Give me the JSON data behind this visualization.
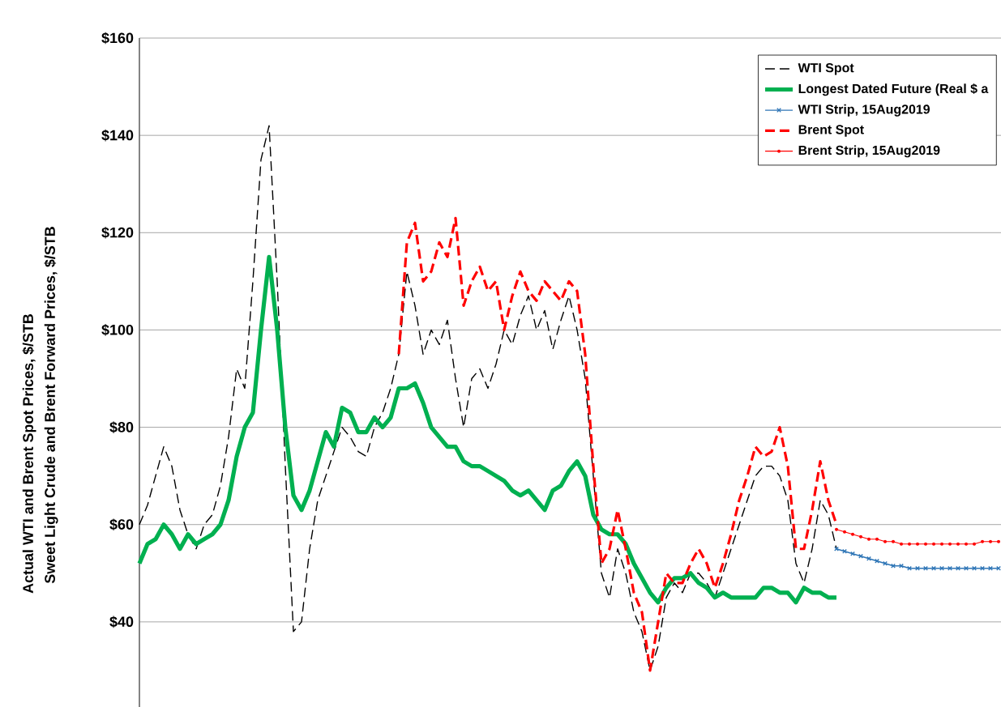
{
  "chart_data": {
    "type": "line",
    "ylabel": "Actual WTI and Brent Spot Prices, $/STB",
    "annotations": [
      "Sweet Light Crude and Brent Forward Prices, $/STB"
    ],
    "categories": [
      null,
      null,
      null,
      null,
      null,
      null,
      null,
      null,
      null,
      null,
      null,
      null,
      null,
      null,
      null,
      null,
      null,
      null,
      null,
      null,
      null,
      null,
      null,
      null,
      null,
      null,
      null,
      null,
      null,
      null,
      null,
      null,
      null,
      null,
      null,
      null,
      null,
      null,
      null,
      null,
      null,
      null,
      null,
      null,
      null,
      null,
      null,
      null,
      null,
      null,
      null,
      null,
      null,
      null,
      null,
      null,
      null,
      null,
      null,
      null,
      null,
      null,
      null,
      null,
      null,
      null,
      null,
      null,
      null,
      null,
      null,
      null,
      null,
      null,
      null,
      null,
      null,
      null,
      null,
      null,
      null,
      null,
      null,
      null,
      null,
      null,
      null,
      null,
      null,
      null,
      null,
      null,
      null,
      null,
      null,
      null,
      null,
      null,
      null,
      null,
      null,
      null,
      null,
      null,
      null,
      null,
      null
    ],
    "ylim": [
      22.5,
      160
    ],
    "yticks": [
      {
        "value": 40,
        "label": "$40"
      },
      {
        "value": 60,
        "label": "$60"
      },
      {
        "value": 80,
        "label": "$80"
      },
      {
        "value": 100,
        "label": "$100"
      },
      {
        "value": 120,
        "label": "$120"
      },
      {
        "value": 140,
        "label": "$140"
      },
      {
        "value": 160,
        "label": "$160"
      }
    ],
    "grid": "y",
    "legend": "top right",
    "series": [
      {
        "name": "WTI Spot",
        "color": "#000000",
        "line_style": "dashed",
        "marker": "none",
        "values": [
          60,
          64,
          70,
          76,
          72,
          63,
          58,
          55,
          60,
          62,
          68,
          78,
          92,
          88,
          110,
          135,
          142,
          110,
          72,
          38,
          40,
          55,
          65,
          70,
          75,
          80,
          78,
          75,
          74,
          80,
          83,
          88,
          95,
          112,
          105,
          95,
          100,
          97,
          102,
          90,
          80,
          90,
          92,
          88,
          93,
          100,
          97,
          103,
          107,
          100,
          104,
          96,
          102,
          107,
          100,
          90,
          70,
          50,
          45,
          55,
          50,
          42,
          38,
          30,
          35,
          45,
          48,
          46,
          50,
          50,
          48,
          45,
          50,
          55,
          60,
          65,
          70,
          72,
          72,
          70,
          65,
          52,
          48,
          55,
          65,
          62,
          55,
          null,
          null,
          null,
          null,
          null,
          null,
          null,
          null,
          null,
          null,
          null,
          null,
          null,
          null,
          null,
          null,
          null,
          null,
          null,
          null
        ]
      },
      {
        "name": "Longest Dated Future (Real $ a",
        "color": "#00b050",
        "line_style": "solid",
        "marker": "none",
        "values": [
          52,
          56,
          57,
          60,
          58,
          55,
          58,
          56,
          57,
          58,
          60,
          65,
          74,
          80,
          83,
          100,
          115,
          100,
          80,
          66,
          63,
          67,
          73,
          79,
          76,
          84,
          83,
          79,
          79,
          82,
          80,
          82,
          88,
          88,
          89,
          85,
          80,
          78,
          76,
          76,
          73,
          72,
          72,
          71,
          70,
          69,
          67,
          66,
          67,
          65,
          63,
          67,
          68,
          71,
          73,
          70,
          62,
          59,
          58,
          58,
          56,
          52,
          49,
          46,
          44,
          47,
          49,
          49,
          50,
          48,
          47,
          45,
          46,
          45,
          45,
          45,
          45,
          47,
          47,
          46,
          46,
          44,
          47,
          46,
          46,
          45,
          45,
          null,
          null,
          null,
          null,
          null,
          null,
          null,
          null,
          null,
          null,
          null,
          null,
          null,
          null,
          null,
          null,
          null,
          null,
          null,
          null
        ]
      },
      {
        "name": "WTI Strip, 15Aug2019",
        "color": "#2e75b6",
        "line_style": "solid",
        "marker": "cross",
        "values": [
          null,
          null,
          null,
          null,
          null,
          null,
          null,
          null,
          null,
          null,
          null,
          null,
          null,
          null,
          null,
          null,
          null,
          null,
          null,
          null,
          null,
          null,
          null,
          null,
          null,
          null,
          null,
          null,
          null,
          null,
          null,
          null,
          null,
          null,
          null,
          null,
          null,
          null,
          null,
          null,
          null,
          null,
          null,
          null,
          null,
          null,
          null,
          null,
          null,
          null,
          null,
          null,
          null,
          null,
          null,
          null,
          null,
          null,
          null,
          null,
          null,
          null,
          null,
          null,
          null,
          null,
          null,
          null,
          null,
          null,
          null,
          null,
          null,
          null,
          null,
          null,
          null,
          null,
          null,
          null,
          null,
          null,
          null,
          null,
          null,
          null,
          55,
          54.5,
          54,
          53.5,
          53,
          52.5,
          52,
          51.5,
          51.5,
          51,
          51,
          51,
          51,
          51,
          51,
          51,
          51,
          51,
          51,
          51,
          51
        ]
      },
      {
        "name": "Brent Spot",
        "color": "#ff0000",
        "line_style": "dashed",
        "marker": "none",
        "values": [
          null,
          null,
          null,
          null,
          null,
          null,
          null,
          null,
          null,
          null,
          null,
          null,
          null,
          null,
          null,
          null,
          null,
          null,
          null,
          null,
          null,
          null,
          null,
          null,
          null,
          null,
          null,
          null,
          null,
          null,
          null,
          null,
          95,
          118,
          122,
          110,
          112,
          118,
          115,
          123,
          105,
          110,
          113,
          108,
          110,
          100,
          107,
          112,
          108,
          106,
          110,
          108,
          106,
          110,
          108,
          95,
          72,
          52,
          55,
          63,
          55,
          46,
          42,
          30,
          40,
          50,
          48,
          48,
          52,
          55,
          52,
          47,
          52,
          58,
          65,
          70,
          76,
          74,
          75,
          80,
          72,
          55,
          55,
          63,
          73,
          65,
          60,
          null,
          null,
          null,
          null,
          null,
          null,
          null,
          null,
          null,
          null,
          null,
          null,
          null,
          null,
          null,
          null,
          null,
          null,
          null,
          null
        ]
      },
      {
        "name": "Brent Strip, 15Aug2019",
        "color": "#ff0000",
        "line_style": "solid",
        "marker": "circle",
        "values": [
          null,
          null,
          null,
          null,
          null,
          null,
          null,
          null,
          null,
          null,
          null,
          null,
          null,
          null,
          null,
          null,
          null,
          null,
          null,
          null,
          null,
          null,
          null,
          null,
          null,
          null,
          null,
          null,
          null,
          null,
          null,
          null,
          null,
          null,
          null,
          null,
          null,
          null,
          null,
          null,
          null,
          null,
          null,
          null,
          null,
          null,
          null,
          null,
          null,
          null,
          null,
          null,
          null,
          null,
          null,
          null,
          null,
          null,
          null,
          null,
          null,
          null,
          null,
          null,
          null,
          null,
          null,
          null,
          null,
          null,
          null,
          null,
          null,
          null,
          null,
          null,
          null,
          null,
          null,
          null,
          null,
          null,
          null,
          null,
          null,
          null,
          59,
          58.5,
          58,
          57.5,
          57,
          57,
          56.5,
          56.5,
          56,
          56,
          56,
          56,
          56,
          56,
          56,
          56,
          56,
          56,
          56.5,
          56.5,
          56.5
        ]
      }
    ]
  }
}
